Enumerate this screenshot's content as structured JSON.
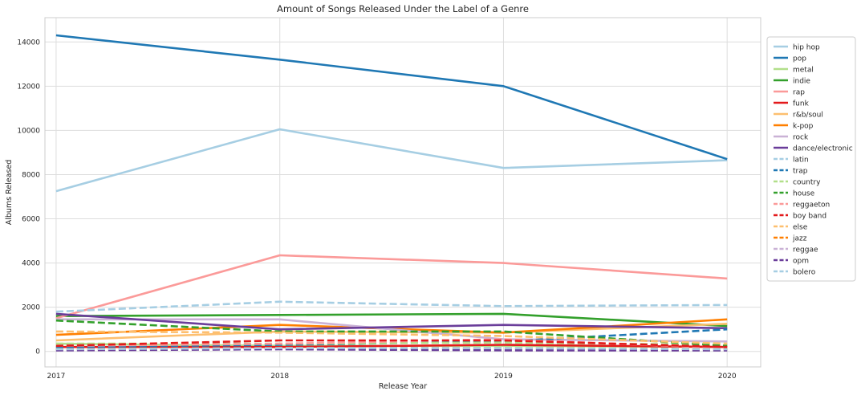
{
  "chart_data": {
    "type": "line",
    "title": "Amount of Songs Released Under the Label of a Genre",
    "xlabel": "Release Year",
    "ylabel": "Albums Released",
    "x": [
      "2017",
      "2018",
      "2019",
      "2020"
    ],
    "xlim": [
      2016.95,
      2020.15
    ],
    "ylim": [
      -700,
      15100
    ],
    "yticks": [
      0,
      2000,
      4000,
      6000,
      8000,
      10000,
      12000,
      14000
    ],
    "ytick_labels": [
      "0",
      "2000",
      "4000",
      "6000",
      "8000",
      "10000",
      "12000",
      "14000"
    ],
    "grid": true,
    "legend_position": "right",
    "series": [
      {
        "name": "hip hop",
        "color": "#a6cee3",
        "dash": "solid",
        "values": [
          7250,
          10050,
          8300,
          8650
        ]
      },
      {
        "name": "pop",
        "color": "#1f78b4",
        "dash": "solid",
        "values": [
          14300,
          13200,
          12000,
          8700
        ]
      },
      {
        "name": "metal",
        "color": "#b2df8a",
        "dash": "solid",
        "values": [
          350,
          250,
          250,
          200
        ]
      },
      {
        "name": "indie",
        "color": "#33a02c",
        "dash": "solid",
        "values": [
          1600,
          1650,
          1700,
          1150
        ]
      },
      {
        "name": "rap",
        "color": "#fb9a99",
        "dash": "solid",
        "values": [
          1500,
          4350,
          4000,
          3300
        ]
      },
      {
        "name": "funk",
        "color": "#e31a1c",
        "dash": "solid",
        "values": [
          200,
          200,
          300,
          200
        ]
      },
      {
        "name": "r&b/soul",
        "color": "#fdbf6f",
        "dash": "solid",
        "values": [
          500,
          900,
          850,
          1250
        ]
      },
      {
        "name": "k-pop",
        "color": "#ff7f00",
        "dash": "solid",
        "values": [
          750,
          1200,
          850,
          1450
        ]
      },
      {
        "name": "rock",
        "color": "#cab2d6",
        "dash": "solid",
        "values": [
          1450,
          1450,
          550,
          450
        ]
      },
      {
        "name": "dance/electronic",
        "color": "#6a3d9a",
        "dash": "solid",
        "values": [
          1700,
          1000,
          1200,
          1050
        ]
      },
      {
        "name": "latin",
        "color": "#a6cee3",
        "dash": "dashed",
        "values": [
          1800,
          2250,
          2050,
          2100
        ]
      },
      {
        "name": "trap",
        "color": "#1f78b4",
        "dash": "dashed",
        "values": [
          200,
          300,
          450,
          1000
        ]
      },
      {
        "name": "country",
        "color": "#b2df8a",
        "dash": "dashed",
        "values": [
          350,
          350,
          400,
          300
        ]
      },
      {
        "name": "house",
        "color": "#33a02c",
        "dash": "dashed",
        "values": [
          1400,
          900,
          900,
          250
        ]
      },
      {
        "name": "reggaeton",
        "color": "#fb9a99",
        "dash": "dashed",
        "values": [
          250,
          350,
          550,
          150
        ]
      },
      {
        "name": "boy band",
        "color": "#e31a1c",
        "dash": "dashed",
        "values": [
          250,
          500,
          500,
          200
        ]
      },
      {
        "name": "else",
        "color": "#fdbf6f",
        "dash": "dashed",
        "values": [
          900,
          850,
          700,
          350
        ]
      },
      {
        "name": "jazz",
        "color": "#ff7f00",
        "dash": "dashed",
        "values": [
          100,
          150,
          150,
          100
        ]
      },
      {
        "name": "reggae",
        "color": "#cab2d6",
        "dash": "dashed",
        "values": [
          50,
          100,
          100,
          50
        ]
      },
      {
        "name": "opm",
        "color": "#6a3d9a",
        "dash": "dashed",
        "values": [
          50,
          100,
          50,
          50
        ]
      },
      {
        "name": "bolero",
        "color": "#a6cee3",
        "dash": "dashed",
        "values": [
          100,
          150,
          150,
          100
        ]
      }
    ]
  }
}
